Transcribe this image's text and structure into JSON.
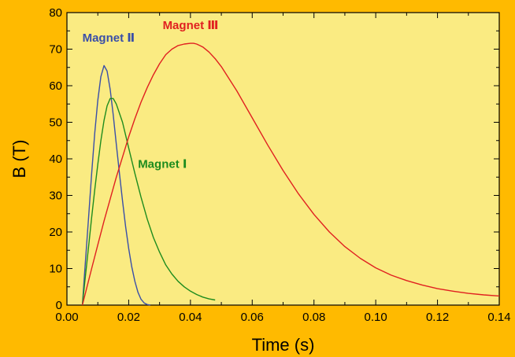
{
  "chart_data": {
    "type": "line",
    "xlabel": "Time (s)",
    "ylabel": "B (T)",
    "xlim": [
      0.0,
      0.14
    ],
    "ylim": [
      0,
      80
    ],
    "x_ticks": [
      "0.00",
      "0.02",
      "0.04",
      "0.06",
      "0.08",
      "0.10",
      "0.12",
      "0.14"
    ],
    "y_ticks": [
      "0",
      "10",
      "20",
      "30",
      "40",
      "50",
      "60",
      "70",
      "80"
    ],
    "grid": false,
    "background_color": "#FFBA00",
    "plot_area_color": "#FAEB82",
    "series": [
      {
        "name": "Magnet Ⅱ",
        "color": "#3A4FA8",
        "x": [
          0.005,
          0.006,
          0.007,
          0.008,
          0.009,
          0.01,
          0.011,
          0.012,
          0.013,
          0.014,
          0.015,
          0.016,
          0.017,
          0.018,
          0.019,
          0.02,
          0.021,
          0.022,
          0.023,
          0.024,
          0.025,
          0.026,
          0.027
        ],
        "y": [
          0,
          12,
          24,
          36,
          47,
          56,
          62.5,
          65.5,
          64,
          59,
          52,
          44,
          36,
          28.5,
          21.5,
          15.5,
          10.5,
          6.5,
          3.5,
          1.6,
          0.6,
          0.15,
          0
        ]
      },
      {
        "name": "Magnet Ⅰ",
        "color": "#1E8C1E",
        "x": [
          0.005,
          0.006,
          0.007,
          0.008,
          0.009,
          0.01,
          0.011,
          0.012,
          0.013,
          0.014,
          0.015,
          0.016,
          0.018,
          0.02,
          0.022,
          0.024,
          0.026,
          0.028,
          0.03,
          0.032,
          0.034,
          0.036,
          0.038,
          0.04,
          0.042,
          0.044,
          0.046,
          0.048
        ],
        "y": [
          0,
          8,
          16,
          24,
          31.5,
          38.5,
          45,
          50.5,
          54.5,
          56.5,
          56.5,
          55,
          50,
          43,
          36,
          29.5,
          23.5,
          18.5,
          14.5,
          11,
          8.5,
          6.5,
          5,
          3.8,
          2.9,
          2.2,
          1.7,
          1.4
        ]
      },
      {
        "name": "Magnet Ⅲ",
        "color": "#E02020",
        "x": [
          0.005,
          0.008,
          0.01,
          0.012,
          0.014,
          0.016,
          0.018,
          0.02,
          0.022,
          0.024,
          0.026,
          0.028,
          0.03,
          0.032,
          0.034,
          0.036,
          0.038,
          0.04,
          0.041,
          0.042,
          0.044,
          0.046,
          0.048,
          0.05,
          0.055,
          0.06,
          0.065,
          0.07,
          0.075,
          0.08,
          0.085,
          0.09,
          0.095,
          0.1,
          0.105,
          0.11,
          0.115,
          0.12,
          0.125,
          0.13,
          0.135,
          0.14
        ],
        "y": [
          0,
          10,
          16.5,
          23,
          29,
          35,
          40.5,
          46,
          51,
          55.5,
          59.5,
          63,
          66,
          68.5,
          70,
          71,
          71.4,
          71.6,
          71.6,
          71.4,
          70.6,
          69.2,
          67.4,
          65.2,
          58.6,
          51.2,
          43.8,
          36.8,
          30.4,
          24.8,
          20,
          16,
          12.8,
          10.2,
          8.2,
          6.7,
          5.5,
          4.5,
          3.8,
          3.2,
          2.8,
          2.5
        ]
      }
    ],
    "annotations": [
      {
        "text": "Magnet Ⅱ",
        "x": 0.005,
        "y": 72,
        "color": "#3A4FA8"
      },
      {
        "text": "Magnet Ⅲ",
        "x": 0.031,
        "y": 75.5,
        "color": "#E02020"
      },
      {
        "text": "Magnet Ⅰ",
        "x": 0.023,
        "y": 37.5,
        "color": "#1E8C1E"
      }
    ]
  }
}
